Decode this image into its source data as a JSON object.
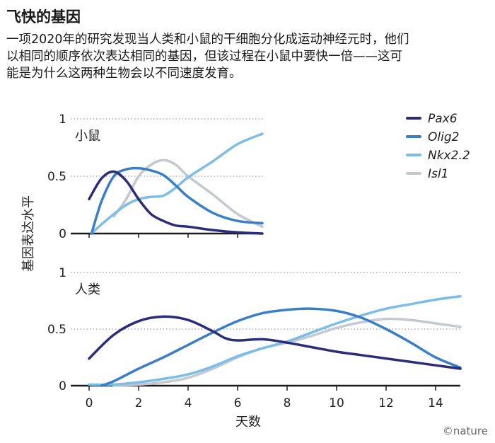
{
  "header": {
    "title": "飞快的基因",
    "subtitle": "一项2020年的研究发现当人类和小鼠的干细胞分化成运动神经元时，他们以相同的顺序依次表达相同的基因，但该过程在小鼠中要快一倍——这可能是为什么这两种生物会以不同速度发育。"
  },
  "credit": "©nature",
  "chart_data": {
    "type": "line",
    "ylabel": "基因表达水平",
    "xlabel": "天数",
    "xlim": [
      0,
      15
    ],
    "ylim": [
      0,
      1
    ],
    "x_ticks": [
      0,
      2,
      4,
      6,
      8,
      10,
      12,
      14
    ],
    "y_ticks": [
      0,
      0.5,
      1
    ],
    "legend": [
      {
        "name": "Pax6",
        "color": "#2b2d78"
      },
      {
        "name": "Olig2",
        "color": "#3a7ec6"
      },
      {
        "name": "Nkx2.2",
        "color": "#7cbde8"
      },
      {
        "name": "Isl1",
        "color": "#c3c8d1"
      }
    ],
    "panels": [
      {
        "label": "小鼠",
        "series": [
          {
            "name": "Pax6",
            "color": "#2b2d78",
            "x": [
              0,
              0.5,
              1,
              1.5,
              2,
              2.5,
              3,
              3.5,
              4,
              5,
              6,
              7
            ],
            "y": [
              0.3,
              0.48,
              0.54,
              0.46,
              0.3,
              0.17,
              0.11,
              0.07,
              0.06,
              0.03,
              0.01,
              0
            ]
          },
          {
            "name": "Olig2",
            "color": "#3a7ec6",
            "x": [
              0.1,
              0.5,
              1,
              1.5,
              2,
              2.5,
              3,
              3.5,
              4,
              5,
              6,
              7
            ],
            "y": [
              0,
              0.28,
              0.5,
              0.56,
              0.57,
              0.55,
              0.51,
              0.42,
              0.32,
              0.18,
              0.11,
              0.09
            ]
          },
          {
            "name": "Nkx2.2",
            "color": "#7cbde8",
            "x": [
              0.1,
              0.5,
              1,
              1.5,
              2,
              2.5,
              3,
              3.5,
              4,
              5,
              6,
              7
            ],
            "y": [
              0,
              0.08,
              0.17,
              0.25,
              0.3,
              0.32,
              0.33,
              0.4,
              0.49,
              0.63,
              0.78,
              0.87
            ]
          },
          {
            "name": "Isl1",
            "color": "#c3c8d1",
            "x": [
              1,
              1.5,
              2,
              2.5,
              3,
              3.5,
              4,
              5,
              6,
              7
            ],
            "y": [
              0.15,
              0.3,
              0.5,
              0.6,
              0.64,
              0.6,
              0.5,
              0.34,
              0.17,
              0.06
            ]
          }
        ]
      },
      {
        "label": "人类",
        "series": [
          {
            "name": "Pax6",
            "color": "#2b2d78",
            "x": [
              0,
              1,
              2,
              3,
              4,
              5,
              5.5,
              6,
              7,
              8,
              9,
              10,
              11,
              12,
              13,
              14,
              15
            ],
            "y": [
              0.24,
              0.45,
              0.57,
              0.61,
              0.58,
              0.48,
              0.42,
              0.4,
              0.41,
              0.38,
              0.34,
              0.3,
              0.27,
              0.24,
              0.21,
              0.18,
              0.15
            ]
          },
          {
            "name": "Olig2",
            "color": "#3a7ec6",
            "x": [
              0.5,
              1,
              2,
              3,
              4,
              5,
              6,
              7,
              8,
              9,
              10,
              11,
              12,
              13,
              14,
              15
            ],
            "y": [
              0,
              0.04,
              0.15,
              0.25,
              0.36,
              0.47,
              0.57,
              0.64,
              0.67,
              0.68,
              0.66,
              0.6,
              0.5,
              0.38,
              0.25,
              0.16
            ]
          },
          {
            "name": "Nkx2.2",
            "color": "#7cbde8",
            "x": [
              0,
              1,
              2,
              3,
              4,
              5,
              6,
              7,
              8,
              9,
              10,
              11,
              12,
              13,
              14,
              15
            ],
            "y": [
              0.01,
              0.01,
              0.03,
              0.06,
              0.1,
              0.17,
              0.26,
              0.33,
              0.39,
              0.47,
              0.55,
              0.62,
              0.68,
              0.72,
              0.76,
              0.79
            ]
          },
          {
            "name": "Isl1",
            "color": "#c3c8d1",
            "x": [
              1,
              2,
              3,
              4,
              5,
              6,
              7,
              8,
              9,
              10,
              11,
              12,
              13,
              14,
              15
            ],
            "y": [
              0,
              0.01,
              0.03,
              0.07,
              0.15,
              0.25,
              0.33,
              0.38,
              0.44,
              0.51,
              0.56,
              0.59,
              0.58,
              0.55,
              0.52
            ]
          }
        ]
      }
    ]
  }
}
